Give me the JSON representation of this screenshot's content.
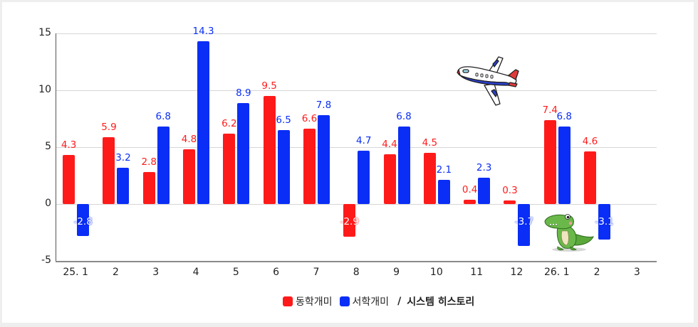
{
  "chart_data": {
    "type": "bar",
    "title": "",
    "xlabel": "",
    "ylabel": "",
    "ylim": [
      -5,
      15
    ],
    "yticks": [
      15,
      10,
      5,
      0,
      -5
    ],
    "grid": true,
    "legend_position": "bottom",
    "categories": [
      "25. 1",
      "2",
      "3",
      "4",
      "5",
      "6",
      "7",
      "8",
      "9",
      "10",
      "11",
      "12",
      "26. 1",
      "2",
      "3"
    ],
    "series": [
      {
        "name": "동학개미",
        "color": "#ff1a1a",
        "values": [
          4.3,
          5.9,
          2.8,
          4.8,
          6.2,
          9.5,
          6.6,
          -2.9,
          4.4,
          4.5,
          0.4,
          0.3,
          7.4,
          4.6,
          null
        ]
      },
      {
        "name": "서학개미",
        "color": "#0a2ef5",
        "values": [
          -2.8,
          3.2,
          6.8,
          14.3,
          8.9,
          6.5,
          7.8,
          4.7,
          6.8,
          2.1,
          2.3,
          -3.7,
          6.8,
          -3.1,
          null
        ]
      }
    ],
    "annotations": [
      "airplane illustration",
      "crocodile illustration"
    ]
  },
  "legend": {
    "items": [
      {
        "label": "동학개미",
        "color": "#ff1a1a"
      },
      {
        "label": "서학개미",
        "color": "#0a2ef5"
      }
    ],
    "separator": "/",
    "note": "시스템 히스토리"
  },
  "yaxis": {
    "ticks": [
      "15",
      "10",
      "5",
      "0",
      "-5"
    ]
  },
  "icons": {
    "airplane": "airplane-icon",
    "crocodile": "crocodile-icon"
  }
}
